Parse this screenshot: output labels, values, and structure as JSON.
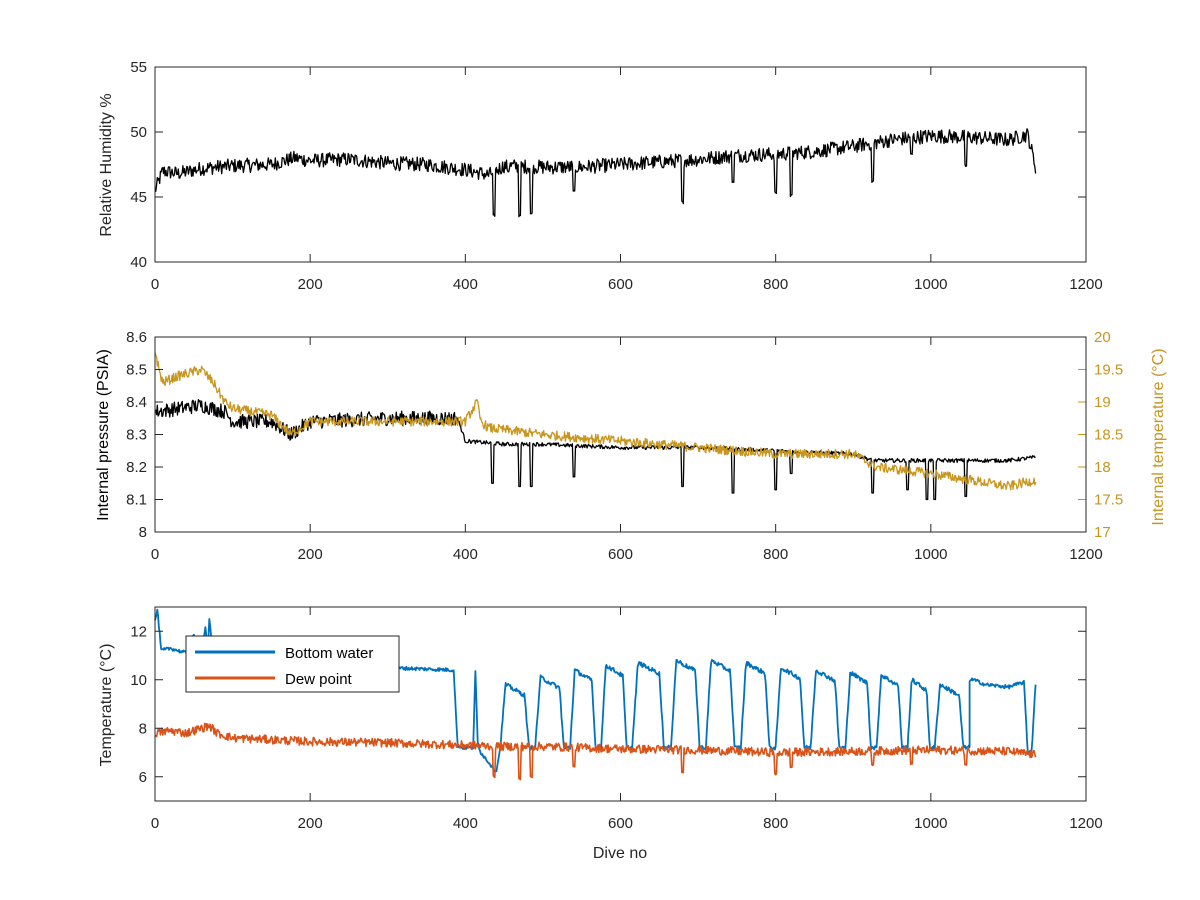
{
  "chart_data": [
    {
      "type": "line",
      "xlabel": "",
      "ylabel": "Relative Humidity %",
      "xlim": [
        0,
        1200
      ],
      "ylim": [
        40,
        55
      ],
      "xticks": [
        0,
        200,
        400,
        600,
        800,
        1000,
        1200
      ],
      "yticks": [
        40,
        45,
        50,
        55
      ],
      "grid": false,
      "series": [
        {
          "color": "#000000",
          "x": [
            0,
            10,
            30,
            60,
            100,
            150,
            180,
            200,
            250,
            300,
            350,
            400,
            430,
            450,
            500,
            550,
            600,
            650,
            700,
            750,
            800,
            850,
            900,
            950,
            1000,
            1050,
            1100,
            1125,
            1135
          ],
          "y": [
            45.5,
            47.0,
            46.8,
            47.2,
            47.4,
            47.5,
            48.0,
            47.8,
            47.9,
            47.6,
            47.5,
            47.1,
            46.7,
            47.4,
            47.3,
            47.3,
            47.5,
            47.7,
            47.9,
            48.2,
            48.3,
            48.5,
            48.9,
            49.4,
            49.7,
            49.6,
            49.4,
            49.8,
            47.3
          ],
          "dips": [
            [
              437,
              43.6
            ],
            [
              455,
              47.0
            ],
            [
              470,
              43.5
            ],
            [
              485,
              43.7
            ],
            [
              540,
              45.4
            ],
            [
              680,
              44.6
            ],
            [
              745,
              46.2
            ],
            [
              800,
              45.3
            ],
            [
              820,
              45.1
            ],
            [
              925,
              46.2
            ],
            [
              975,
              48.3
            ],
            [
              1045,
              47.4
            ]
          ]
        }
      ]
    },
    {
      "type": "line",
      "xlabel": "",
      "ylabel": "Internal pressure (PSIA)",
      "ylabel_right": "Internal temperature (°C)",
      "xlim": [
        0,
        1200
      ],
      "ylim": [
        8,
        8.6
      ],
      "ylim_right": [
        17,
        20
      ],
      "xticks": [
        0,
        200,
        400,
        600,
        800,
        1000,
        1200
      ],
      "yticks": [
        8,
        8.1,
        8.2,
        8.3,
        8.4,
        8.5,
        8.6
      ],
      "yticks_right": [
        17,
        17.5,
        18,
        18.5,
        19,
        19.5,
        20
      ],
      "grid": false,
      "series": [
        {
          "color": "#000000",
          "axis": "left",
          "x": [
            0,
            30,
            60,
            90,
            100,
            150,
            175,
            200,
            300,
            390,
            400,
            450,
            500,
            600,
            700,
            800,
            900,
            925,
            950,
            1000,
            1100,
            1135
          ],
          "y": [
            8.37,
            8.38,
            8.39,
            8.37,
            8.34,
            8.34,
            8.3,
            8.34,
            8.35,
            8.35,
            8.28,
            8.27,
            8.27,
            8.26,
            8.26,
            8.25,
            8.24,
            8.22,
            8.22,
            8.22,
            8.22,
            8.23
          ],
          "dips": [
            [
              435,
              8.15
            ],
            [
              470,
              8.14
            ],
            [
              485,
              8.14
            ],
            [
              540,
              8.17
            ],
            [
              680,
              8.14
            ],
            [
              745,
              8.12
            ],
            [
              800,
              8.13
            ],
            [
              820,
              8.18
            ],
            [
              925,
              8.12
            ],
            [
              970,
              8.13
            ],
            [
              995,
              8.1
            ],
            [
              1005,
              8.1
            ],
            [
              1045,
              8.11
            ]
          ]
        },
        {
          "color": "#C8961E",
          "axis": "right",
          "x": [
            0,
            5,
            10,
            30,
            60,
            75,
            90,
            100,
            150,
            175,
            200,
            300,
            390,
            400,
            415,
            420,
            430,
            500,
            600,
            700,
            800,
            900,
            930,
            1000,
            1050,
            1100,
            1135
          ],
          "y": [
            19.8,
            19.5,
            19.3,
            19.4,
            19.5,
            19.3,
            19.0,
            18.9,
            18.8,
            18.5,
            18.7,
            18.7,
            18.7,
            18.7,
            19.0,
            18.7,
            18.6,
            18.5,
            18.4,
            18.3,
            18.2,
            18.2,
            18.0,
            17.9,
            17.8,
            17.7,
            17.8
          ]
        }
      ]
    },
    {
      "type": "line",
      "xlabel": "Dive no",
      "ylabel": "Temperature (°C)",
      "xlim": [
        0,
        1200
      ],
      "ylim": [
        5,
        13
      ],
      "xticks": [
        0,
        200,
        400,
        600,
        800,
        1000,
        1200
      ],
      "yticks": [
        6,
        8,
        10,
        12
      ],
      "grid": false,
      "legend_position": "top-left",
      "series": [
        {
          "name": "Bottom water",
          "color": "#0072BD",
          "x": [
            0,
            3,
            8,
            20,
            40,
            50,
            60,
            65,
            68,
            70,
            75,
            100,
            200,
            300,
            385,
            390,
            395,
            410,
            413,
            416,
            420,
            440
          ],
          "y": [
            12.4,
            12.9,
            11.2,
            11.3,
            11.1,
            11.8,
            11.2,
            12.2,
            11.0,
            12.5,
            10.9,
            10.6,
            10.6,
            10.5,
            10.4,
            7.3,
            7.2,
            7.2,
            10.3,
            7.4,
            7.0,
            6.2
          ],
          "cycles": [
            [
              445,
              490,
              9.8
            ],
            [
              490,
              535,
              10.1
            ],
            [
              535,
              575,
              10.4
            ],
            [
              575,
              615,
              10.6
            ],
            [
              615,
              665,
              10.7
            ],
            [
              665,
              710,
              10.8
            ],
            [
              710,
              755,
              10.8
            ],
            [
              755,
              800,
              10.7
            ],
            [
              800,
              845,
              10.5
            ],
            [
              845,
              890,
              10.4
            ],
            [
              890,
              930,
              10.3
            ],
            [
              930,
              970,
              10.2
            ],
            [
              970,
              1005,
              10.0
            ],
            [
              1005,
              1050,
              9.8
            ]
          ],
          "tail_x": [
            1055,
            1070,
            1100,
            1120,
            1125,
            1130,
            1135
          ],
          "tail_y": [
            10.0,
            9.8,
            9.7,
            9.9,
            7.0,
            7.1,
            9.8
          ]
        },
        {
          "name": "Dew point",
          "color": "#D95319",
          "x": [
            0,
            20,
            40,
            60,
            70,
            80,
            100,
            200,
            300,
            400,
            450,
            500,
            600,
            700,
            800,
            900,
            1000,
            1100,
            1135
          ],
          "y": [
            7.8,
            7.9,
            7.8,
            8.0,
            8.1,
            7.8,
            7.6,
            7.45,
            7.4,
            7.3,
            7.25,
            7.25,
            7.15,
            7.1,
            7.0,
            7.05,
            7.1,
            7.05,
            6.9
          ],
          "dips": [
            [
              437,
              6.0
            ],
            [
              470,
              5.9
            ],
            [
              485,
              6.0
            ],
            [
              540,
              6.4
            ],
            [
              680,
              6.2
            ],
            [
              800,
              6.1
            ],
            [
              820,
              6.4
            ],
            [
              925,
              6.5
            ],
            [
              975,
              6.5
            ],
            [
              1045,
              6.5
            ]
          ]
        }
      ]
    }
  ]
}
